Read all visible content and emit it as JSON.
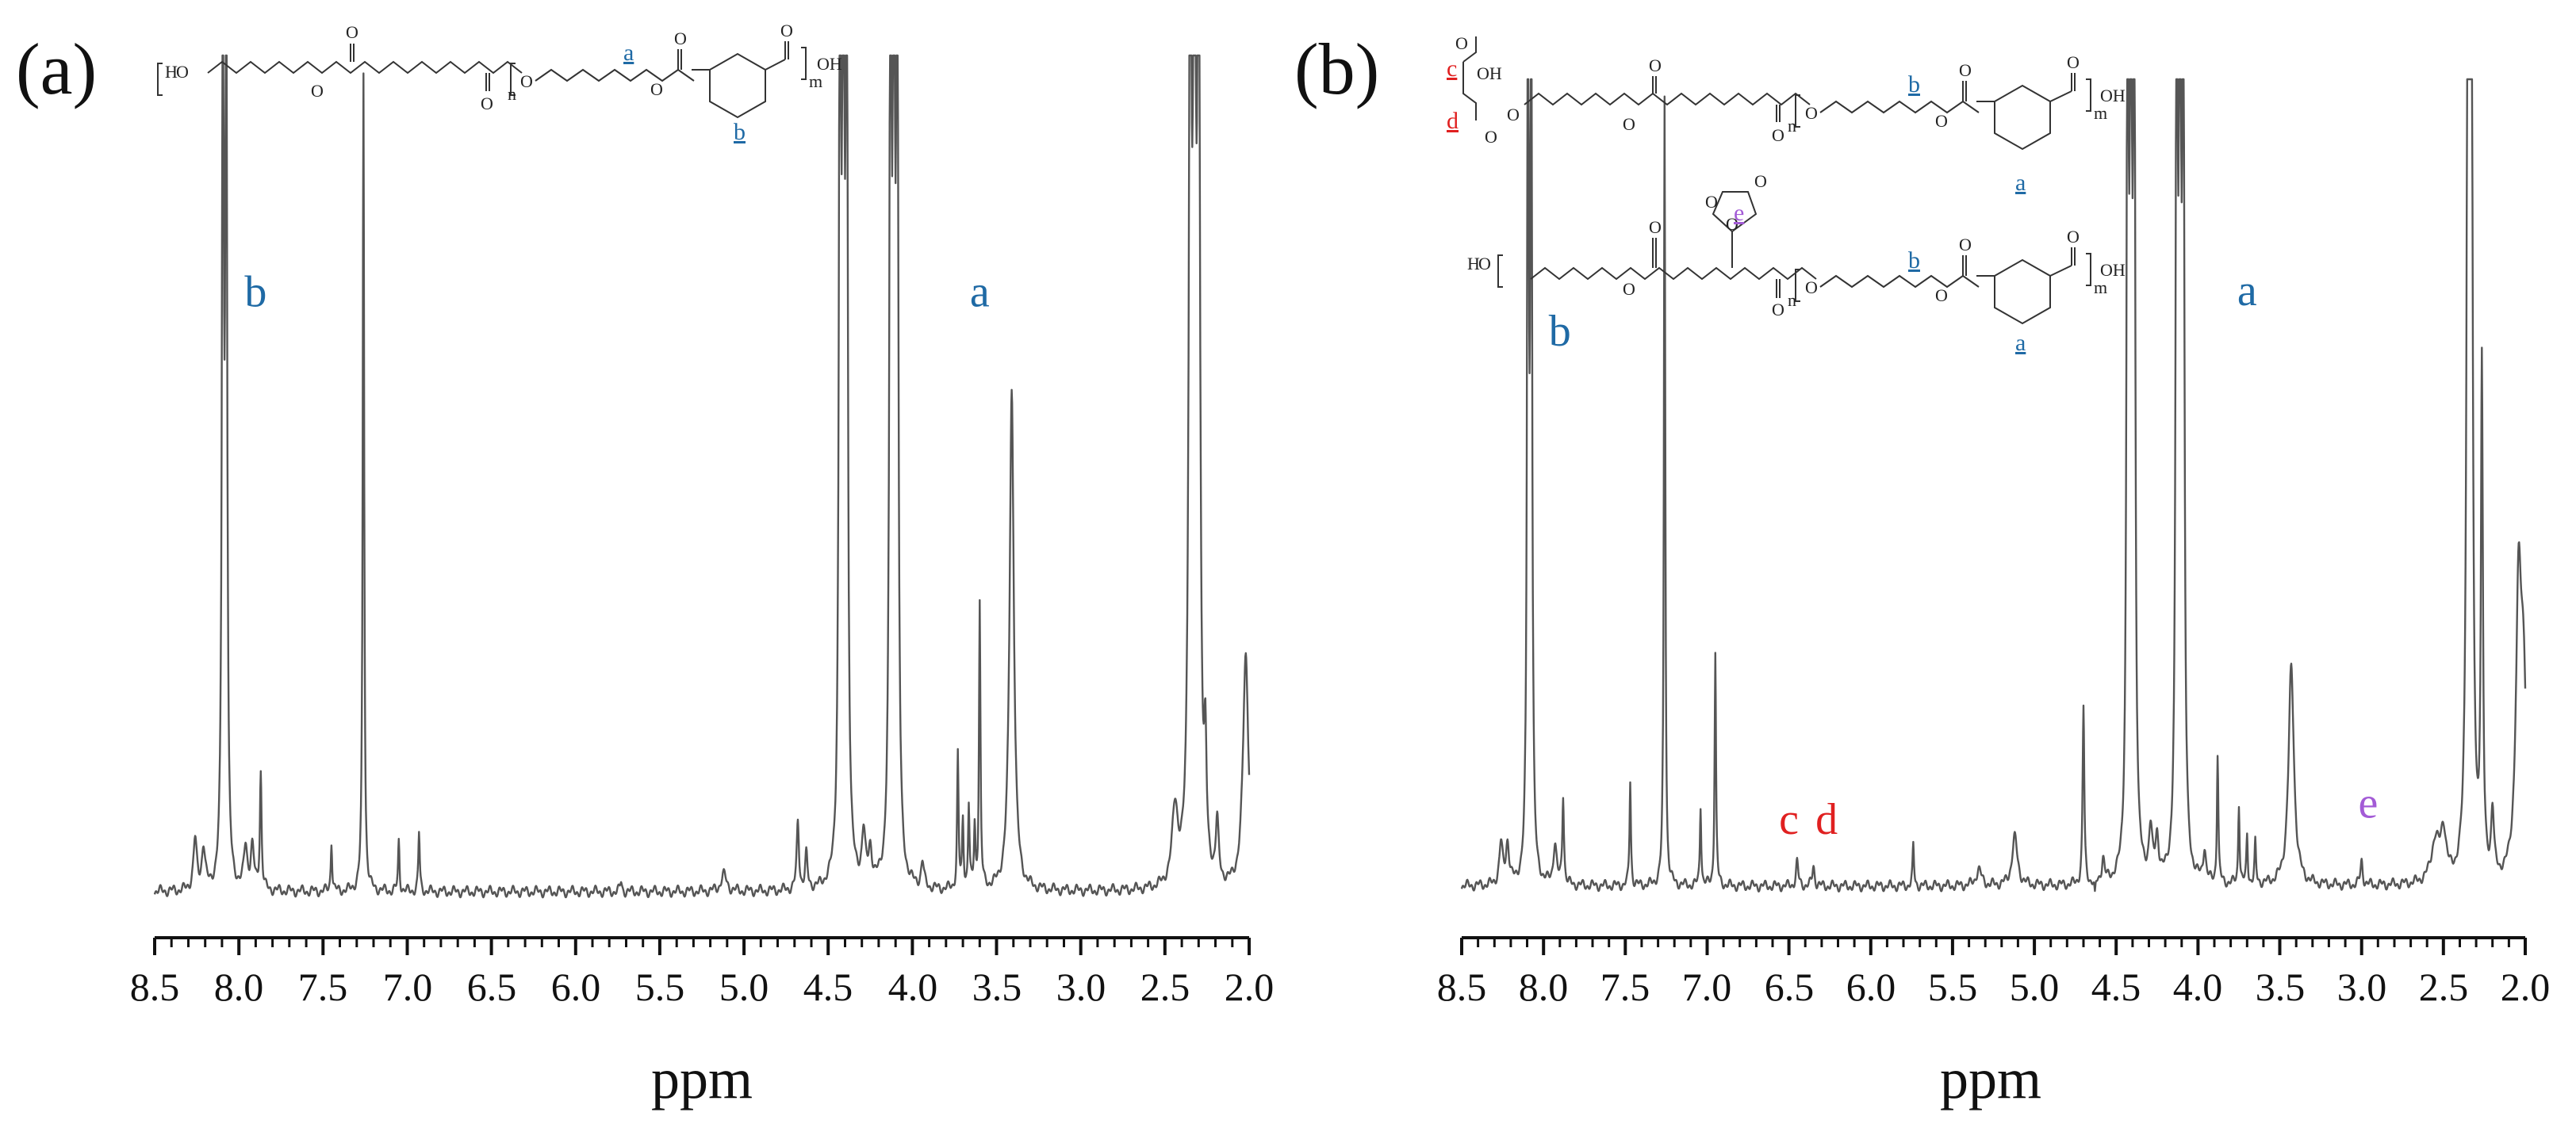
{
  "colors": {
    "spectrum": "#555555",
    "axis": "#111111",
    "label_blue": "#1f6aa5",
    "label_red": "#e02020",
    "label_purple": "#a35bd6",
    "structure": "#333333"
  },
  "chart_data": [
    {
      "type": "line",
      "panel": "(a)",
      "xlabel": "ppm",
      "xlim": [
        8.5,
        2.0
      ],
      "x_reversed": true,
      "xticks": [
        "8.5",
        "8.0",
        "7.5",
        "7.0",
        "6.5",
        "6.0",
        "5.5",
        "5.0",
        "4.5",
        "4.0",
        "3.5",
        "3.0",
        "2.5",
        "2.0"
      ],
      "baseline": 0.03,
      "peaks": [
        {
          "ppm": 8.26,
          "h": 0.06,
          "w": 0.012
        },
        {
          "ppm": 8.21,
          "h": 0.05,
          "w": 0.012
        },
        {
          "ppm": 8.095,
          "h": 1.2,
          "w": 0.006
        },
        {
          "ppm": 8.075,
          "h": 1.2,
          "w": 0.006
        },
        {
          "ppm": 7.96,
          "h": 0.05,
          "w": 0.012
        },
        {
          "ppm": 7.92,
          "h": 0.05,
          "w": 0.012
        },
        {
          "ppm": 7.87,
          "h": 0.14,
          "w": 0.006
        },
        {
          "ppm": 7.45,
          "h": 0.06,
          "w": 0.005
        },
        {
          "ppm": 7.26,
          "h": 0.98,
          "w": 0.005
        },
        {
          "ppm": 7.05,
          "h": 0.06,
          "w": 0.005
        },
        {
          "ppm": 6.93,
          "h": 0.07,
          "w": 0.005
        },
        {
          "ppm": 5.73,
          "h": 0.012,
          "w": 0.006
        },
        {
          "ppm": 5.12,
          "h": 0.02,
          "w": 0.02
        },
        {
          "ppm": 4.68,
          "h": 0.08,
          "w": 0.008
        },
        {
          "ppm": 4.63,
          "h": 0.04,
          "w": 0.008
        },
        {
          "ppm": 4.43,
          "h": 1.2,
          "w": 0.007
        },
        {
          "ppm": 4.41,
          "h": 1.2,
          "w": 0.007
        },
        {
          "ppm": 4.39,
          "h": 1.2,
          "w": 0.007
        },
        {
          "ppm": 4.29,
          "h": 0.06,
          "w": 0.012
        },
        {
          "ppm": 4.25,
          "h": 0.04,
          "w": 0.012
        },
        {
          "ppm": 4.13,
          "h": 1.2,
          "w": 0.007
        },
        {
          "ppm": 4.11,
          "h": 1.2,
          "w": 0.007
        },
        {
          "ppm": 4.09,
          "h": 1.2,
          "w": 0.007
        },
        {
          "ppm": 3.94,
          "h": 0.03,
          "w": 0.01
        },
        {
          "ppm": 3.73,
          "h": 0.16,
          "w": 0.005
        },
        {
          "ppm": 3.7,
          "h": 0.08,
          "w": 0.005
        },
        {
          "ppm": 3.665,
          "h": 0.1,
          "w": 0.005
        },
        {
          "ppm": 3.63,
          "h": 0.07,
          "w": 0.005
        },
        {
          "ppm": 3.6,
          "h": 0.34,
          "w": 0.005
        },
        {
          "ppm": 3.41,
          "h": 0.6,
          "w": 0.015
        },
        {
          "ppm": 2.44,
          "h": 0.09,
          "w": 0.02
        },
        {
          "ppm": 2.35,
          "h": 1.2,
          "w": 0.009
        },
        {
          "ppm": 2.325,
          "h": 1.2,
          "w": 0.009
        },
        {
          "ppm": 2.3,
          "h": 1.2,
          "w": 0.009
        },
        {
          "ppm": 2.26,
          "h": 0.13,
          "w": 0.008
        },
        {
          "ppm": 2.19,
          "h": 0.07,
          "w": 0.01
        },
        {
          "ppm": 2.02,
          "h": 0.28,
          "w": 0.02
        }
      ],
      "annotations": [
        {
          "text": "b",
          "ppm": 7.9,
          "level": 0.7,
          "color": "label_blue"
        },
        {
          "text": "a",
          "ppm": 3.6,
          "level": 0.7,
          "color": "label_blue"
        }
      ]
    },
    {
      "type": "line",
      "panel": "(b)",
      "xlabel": "ppm",
      "xlim": [
        8.5,
        2.0
      ],
      "x_reversed": true,
      "xticks": [
        "8.5",
        "8.0",
        "7.5",
        "7.0",
        "6.5",
        "6.0",
        "5.5",
        "5.0",
        "4.5",
        "4.0",
        "3.5",
        "3.0",
        "2.5",
        "2.0"
      ],
      "baseline": 0.03,
      "peaks": [
        {
          "ppm": 8.26,
          "h": 0.05,
          "w": 0.012
        },
        {
          "ppm": 8.22,
          "h": 0.05,
          "w": 0.012
        },
        {
          "ppm": 8.095,
          "h": 1.2,
          "w": 0.006
        },
        {
          "ppm": 8.075,
          "h": 1.2,
          "w": 0.006
        },
        {
          "ppm": 7.93,
          "h": 0.05,
          "w": 0.012
        },
        {
          "ppm": 7.88,
          "h": 0.11,
          "w": 0.006
        },
        {
          "ppm": 7.47,
          "h": 0.13,
          "w": 0.005
        },
        {
          "ppm": 7.26,
          "h": 0.98,
          "w": 0.005
        },
        {
          "ppm": 7.04,
          "h": 0.1,
          "w": 0.005
        },
        {
          "ppm": 6.95,
          "h": 0.29,
          "w": 0.005
        },
        {
          "ppm": 6.45,
          "h": 0.03,
          "w": 0.008
        },
        {
          "ppm": 6.35,
          "h": 0.025,
          "w": 0.008
        },
        {
          "ppm": 5.74,
          "h": 0.05,
          "w": 0.005
        },
        {
          "ppm": 5.34,
          "h": 0.02,
          "w": 0.02
        },
        {
          "ppm": 5.12,
          "h": 0.06,
          "w": 0.02
        },
        {
          "ppm": 4.7,
          "h": 0.22,
          "w": 0.006
        },
        {
          "ppm": 4.63,
          "h": -0.02,
          "w": 0.004
        },
        {
          "ppm": 4.58,
          "h": 0.03,
          "w": 0.01
        },
        {
          "ppm": 4.43,
          "h": 1.2,
          "w": 0.007
        },
        {
          "ppm": 4.41,
          "h": 1.2,
          "w": 0.007
        },
        {
          "ppm": 4.39,
          "h": 1.2,
          "w": 0.007
        },
        {
          "ppm": 4.29,
          "h": 0.06,
          "w": 0.012
        },
        {
          "ppm": 4.25,
          "h": 0.05,
          "w": 0.012
        },
        {
          "ppm": 4.13,
          "h": 1.2,
          "w": 0.007
        },
        {
          "ppm": 4.11,
          "h": 1.2,
          "w": 0.007
        },
        {
          "ppm": 4.09,
          "h": 1.2,
          "w": 0.007
        },
        {
          "ppm": 3.96,
          "h": 0.04,
          "w": 0.01
        },
        {
          "ppm": 3.88,
          "h": 0.16,
          "w": 0.005
        },
        {
          "ppm": 3.75,
          "h": 0.1,
          "w": 0.005
        },
        {
          "ppm": 3.7,
          "h": 0.06,
          "w": 0.005
        },
        {
          "ppm": 3.65,
          "h": 0.05,
          "w": 0.005
        },
        {
          "ppm": 3.43,
          "h": 0.27,
          "w": 0.02
        },
        {
          "ppm": 3.0,
          "h": 0.03,
          "w": 0.008
        },
        {
          "ppm": 2.55,
          "h": 0.05,
          "w": 0.03
        },
        {
          "ppm": 2.5,
          "h": 0.06,
          "w": 0.02
        },
        {
          "ppm": 2.35,
          "h": 1.2,
          "w": 0.009
        },
        {
          "ppm": 2.33,
          "h": 1.2,
          "w": 0.009
        },
        {
          "ppm": 2.265,
          "h": 0.62,
          "w": 0.007
        },
        {
          "ppm": 2.2,
          "h": 0.08,
          "w": 0.01
        },
        {
          "ppm": 2.04,
          "h": 0.35,
          "w": 0.02
        },
        {
          "ppm": 2.01,
          "h": 0.22,
          "w": 0.02
        }
      ],
      "annotations": [
        {
          "text": "b",
          "ppm": 7.9,
          "level": 0.67,
          "color": "label_blue"
        },
        {
          "text": "a",
          "ppm": 3.7,
          "level": 0.72,
          "color": "label_blue"
        },
        {
          "text": "c",
          "ppm": 6.5,
          "level": 0.065,
          "color": "label_red"
        },
        {
          "text": "d",
          "ppm": 6.27,
          "level": 0.065,
          "color": "label_red"
        },
        {
          "text": "e",
          "ppm": 2.96,
          "level": 0.085,
          "color": "label_purple"
        }
      ]
    }
  ],
  "structure_labels": {
    "a_top_a": "a",
    "a_top_b": "b",
    "b_top_c": "c",
    "b_top_d": "d",
    "b_top_b": "b",
    "b_top_a": "a",
    "b_mid_e": "e",
    "b_mid_b": "b",
    "b_mid_a": "a",
    "sub_n": "n",
    "sub_m": "m",
    "atom_O": "O",
    "atom_OH": "OH",
    "atom_H": "H"
  }
}
